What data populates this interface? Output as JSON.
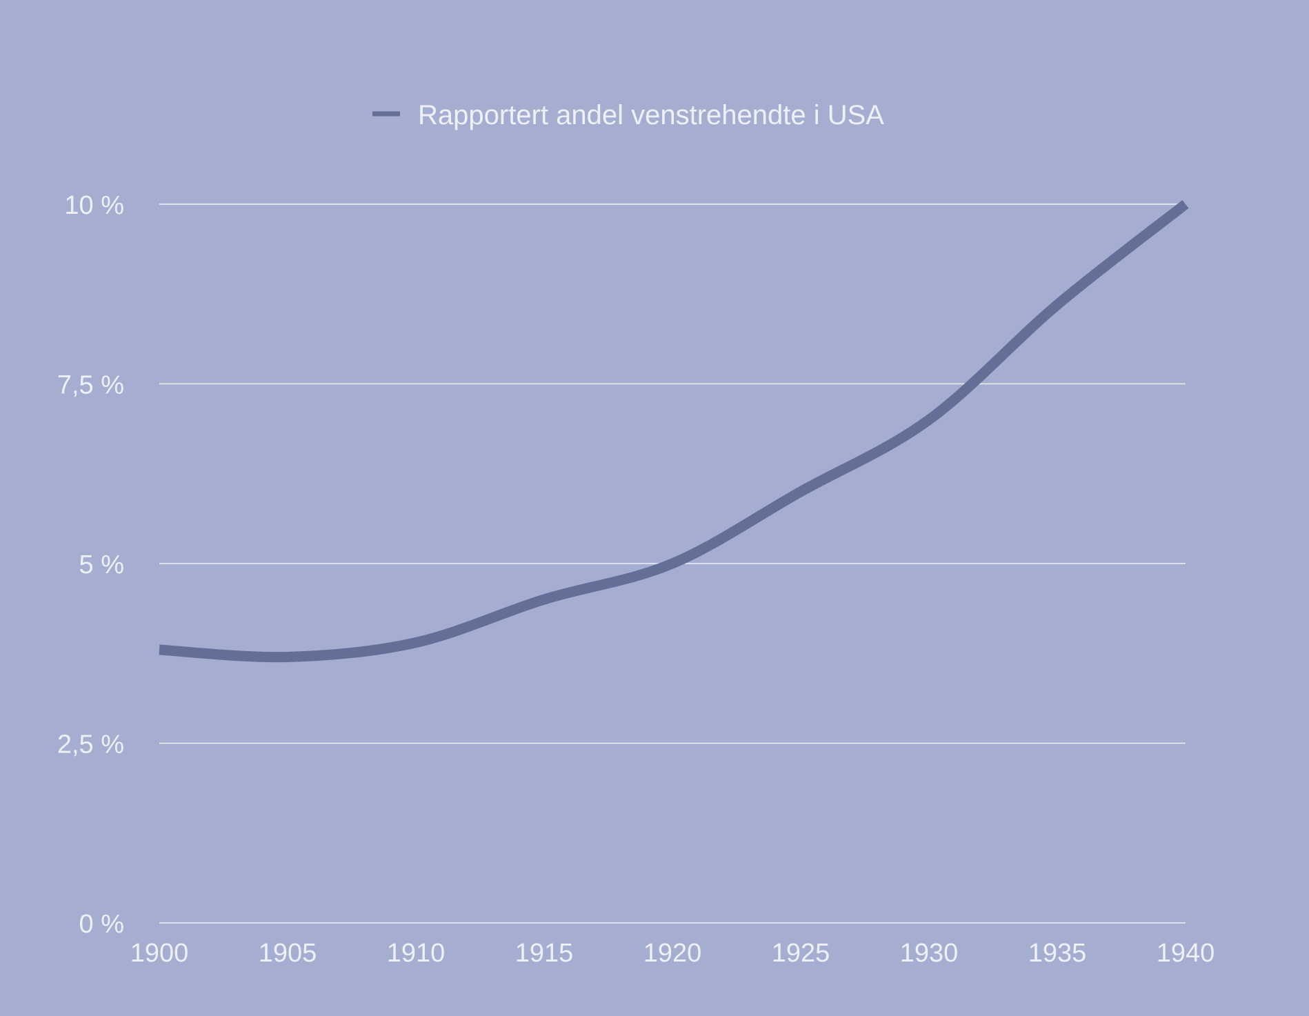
{
  "colors": {
    "background": "#a5aed0",
    "line": "#646f97",
    "grid": "#eef0f8",
    "text": "#eef0f8"
  },
  "chart_data": {
    "type": "line",
    "title": "",
    "xlabel": "",
    "ylabel": "",
    "x": [
      1900,
      1905,
      1910,
      1915,
      1920,
      1925,
      1930,
      1935,
      1940
    ],
    "series": [
      {
        "name": "Rapportert andel venstrehendte i USA",
        "values": [
          3.8,
          3.7,
          3.9,
          4.5,
          5.0,
          6.0,
          7.0,
          8.6,
          10.0
        ]
      }
    ],
    "xlim": [
      1900,
      1940
    ],
    "ylim": [
      0,
      10
    ],
    "x_ticks": [
      "1900",
      "1905",
      "1910",
      "1915",
      "1920",
      "1925",
      "1930",
      "1935",
      "1940"
    ],
    "y_ticks": [
      {
        "value": 0,
        "label": "0 %"
      },
      {
        "value": 2.5,
        "label": "2,5 %"
      },
      {
        "value": 5,
        "label": "5 %"
      },
      {
        "value": 7.5,
        "label": "7,5 %"
      },
      {
        "value": 10,
        "label": "10 %"
      }
    ],
    "grid": true,
    "legend_position": "top-center"
  }
}
